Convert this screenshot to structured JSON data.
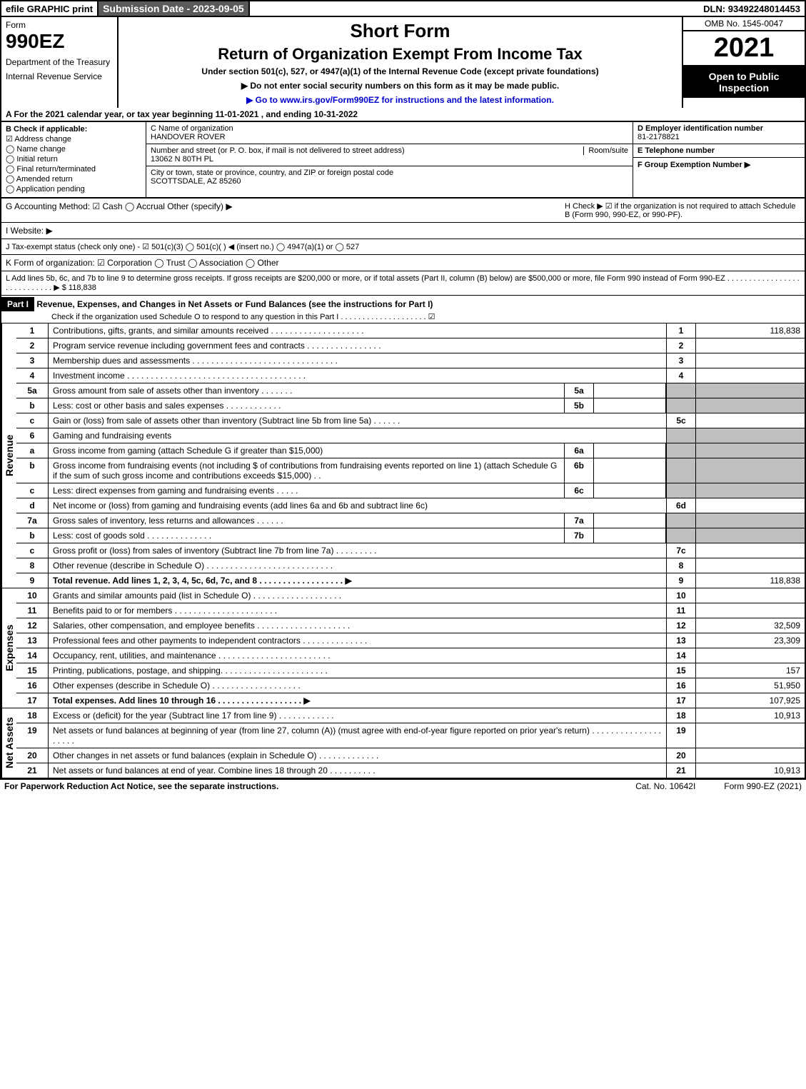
{
  "topbar": {
    "efile": "efile GRAPHIC print",
    "submission": "Submission Date - 2023-09-05",
    "dln": "DLN: 93492248014453"
  },
  "left": {
    "form_label": "Form",
    "form_no": "990EZ",
    "dept": "Department of the Treasury",
    "irs": "Internal Revenue Service"
  },
  "center": {
    "short": "Short Form",
    "return": "Return of Organization Exempt From Income Tax",
    "under": "Under section 501(c), 527, or 4947(a)(1) of the Internal Revenue Code (except private foundations)",
    "note": "▶ Do not enter social security numbers on this form as it may be made public.",
    "goto": "▶ Go to www.irs.gov/Form990EZ for instructions and the latest information."
  },
  "right": {
    "omb": "OMB No. 1545-0047",
    "year": "2021",
    "open": "Open to Public Inspection"
  },
  "rowA": "A  For the 2021 calendar year, or tax year beginning 11-01-2021 , and ending 10-31-2022",
  "B": {
    "head": "B  Check if applicable:",
    "addr": "Address change",
    "name": "Name change",
    "initial": "Initial return",
    "final": "Final return/terminated",
    "amended": "Amended return",
    "pending": "Application pending"
  },
  "C": {
    "name_lbl": "C Name of organization",
    "name": "HANDOVER ROVER",
    "street_lbl": "Number and street (or P. O. box, if mail is not delivered to street address)",
    "room_lbl": "Room/suite",
    "street": "13062 N 80TH PL",
    "city_lbl": "City or town, state or province, country, and ZIP or foreign postal code",
    "city": "SCOTTSDALE, AZ  85260"
  },
  "D": {
    "ein_lbl": "D Employer identification number",
    "ein": "81-2178821",
    "tel_lbl": "E Telephone number",
    "group_lbl": "F Group Exemption Number   ▶"
  },
  "G": "G Accounting Method:   ☑ Cash  ◯ Accrual  Other (specify) ▶",
  "H": "H   Check ▶  ☑  if the organization is not required to attach Schedule B (Form 990, 990-EZ, or 990-PF).",
  "I": "I Website: ▶",
  "J": "J Tax-exempt status (check only one) - ☑ 501(c)(3) ◯ 501(c)(  ) ◀ (insert no.) ◯ 4947(a)(1) or ◯ 527",
  "K": "K Form of organization:  ☑ Corporation  ◯ Trust  ◯ Association  ◯ Other",
  "L": "L Add lines 5b, 6c, and 7b to line 9 to determine gross receipts. If gross receipts are $200,000 or more, or if total assets (Part II, column (B) below) are $500,000 or more, file Form 990 instead of Form 990-EZ  .  .  .  .  .  .  .  .  .  .  .  .  .  .  .  .  .  .  .  .  .  .  .  .  .  .  .  . ▶ $ 118,838",
  "part1_head": "Part I",
  "part1_title": "Revenue, Expenses, and Changes in Net Assets or Fund Balances (see the instructions for Part I)",
  "part1_check": "Check if the organization used Schedule O to respond to any question in this Part I .  .  .  .  .  .  .  .  .  .  .  .  .  .  .  .  .  .  .  . ☑",
  "revenue_label": "Revenue",
  "expenses_label": "Expenses",
  "netassets_label": "Net Assets",
  "lines": {
    "1": {
      "no": "1",
      "desc": "Contributions, gifts, grants, and similar amounts received  .  .  .  .  .  .  .  .  .  .  .  .  .  .  .  .  .  .  .  .",
      "col": "1",
      "val": "118,838"
    },
    "2": {
      "no": "2",
      "desc": "Program service revenue including government fees and contracts  .  .  .  .  .  .  .  .  .  .  .  .  .  .  .  .",
      "col": "2",
      "val": ""
    },
    "3": {
      "no": "3",
      "desc": "Membership dues and assessments  .  .  .  .  .  .  .  .  .  .  .  .  .  .  .  .  .  .  .  .  .  .  .  .  .  .  .  .  .  .  .",
      "col": "3",
      "val": ""
    },
    "4": {
      "no": "4",
      "desc": "Investment income  .  .  .  .  .  .  .  .  .  .  .  .  .  .  .  .  .  .  .  .  .  .  .  .  .  .  .  .  .  .  .  .  .  .  .  .  .  .",
      "col": "4",
      "val": ""
    },
    "5a": {
      "no": "5a",
      "desc": "Gross amount from sale of assets other than inventory  .  .  .  .  .  .  .",
      "sub": "5a"
    },
    "5b": {
      "no": "b",
      "desc": "Less: cost or other basis and sales expenses  .  .  .  .  .  .  .  .  .  .  .  .",
      "sub": "5b"
    },
    "5c": {
      "no": "c",
      "desc": "Gain or (loss) from sale of assets other than inventory (Subtract line 5b from line 5a)  .  .  .  .  .  .",
      "col": "5c",
      "val": ""
    },
    "6": {
      "no": "6",
      "desc": "Gaming and fundraising events"
    },
    "6a": {
      "no": "a",
      "desc": "Gross income from gaming (attach Schedule G if greater than $15,000)",
      "sub": "6a"
    },
    "6b": {
      "no": "b",
      "desc": "Gross income from fundraising events (not including $                          of contributions from fundraising events reported on line 1) (attach Schedule G if the sum of such gross income and contributions exceeds $15,000)     .   .",
      "sub": "6b"
    },
    "6c": {
      "no": "c",
      "desc": "Less: direct expenses from gaming and fundraising events   .  .  .  .  .",
      "sub": "6c"
    },
    "6d": {
      "no": "d",
      "desc": "Net income or (loss) from gaming and fundraising events (add lines 6a and 6b and subtract line 6c)",
      "col": "6d",
      "val": ""
    },
    "7a": {
      "no": "7a",
      "desc": "Gross sales of inventory, less returns and allowances  .  .  .  .  .  .",
      "sub": "7a"
    },
    "7b": {
      "no": "b",
      "desc": "Less: cost of goods sold          .   .   .   .   .   .   .   .   .   .   .   .   .   .",
      "sub": "7b"
    },
    "7c": {
      "no": "c",
      "desc": "Gross profit or (loss) from sales of inventory (Subtract line 7b from line 7a)  .  .  .  .  .  .  .  .  .",
      "col": "7c",
      "val": ""
    },
    "8": {
      "no": "8",
      "desc": "Other revenue (describe in Schedule O)  .  .  .  .  .  .  .  .  .  .  .  .  .  .  .  .  .  .  .  .  .  .  .  .  .  .  .",
      "col": "8",
      "val": ""
    },
    "9": {
      "no": "9",
      "desc": "Total revenue. Add lines 1, 2, 3, 4, 5c, 6d, 7c, and 8   .  .  .  .  .  .  .  .  .  .  .  .  .  .  .  .  .  .  ▶",
      "col": "9",
      "val": "118,838"
    },
    "10": {
      "no": "10",
      "desc": "Grants and similar amounts paid (list in Schedule O)  .  .  .  .  .  .  .  .  .  .  .  .  .  .  .  .  .  .  .",
      "col": "10",
      "val": ""
    },
    "11": {
      "no": "11",
      "desc": "Benefits paid to or for members      .   .   .   .   .   .   .   .   .   .   .   .   .   .   .   .   .   .   .   .   .   .",
      "col": "11",
      "val": ""
    },
    "12": {
      "no": "12",
      "desc": "Salaries, other compensation, and employee benefits .  .  .  .  .  .  .  .  .  .  .  .  .  .  .  .  .  .  .  .",
      "col": "12",
      "val": "32,509"
    },
    "13": {
      "no": "13",
      "desc": "Professional fees and other payments to independent contractors  .  .  .  .  .  .  .  .  .  .  .  .  .  .",
      "col": "13",
      "val": "23,309"
    },
    "14": {
      "no": "14",
      "desc": "Occupancy, rent, utilities, and maintenance .  .  .  .  .  .  .  .  .  .  .  .  .  .  .  .  .  .  .  .  .  .  .  .",
      "col": "14",
      "val": ""
    },
    "15": {
      "no": "15",
      "desc": "Printing, publications, postage, and shipping.  .  .  .  .  .  .  .  .  .  .  .  .  .  .  .  .  .  .  .  .  .  .",
      "col": "15",
      "val": "157"
    },
    "16": {
      "no": "16",
      "desc": "Other expenses (describe in Schedule O)     .   .   .   .   .   .   .   .   .   .   .   .   .   .   .   .   .   .   .",
      "col": "16",
      "val": "51,950"
    },
    "17": {
      "no": "17",
      "desc": "Total expenses. Add lines 10 through 16     .   .   .   .   .   .   .   .   .   .   .   .   .   .   .   .   .   .  ▶",
      "col": "17",
      "val": "107,925"
    },
    "18": {
      "no": "18",
      "desc": "Excess or (deficit) for the year (Subtract line 17 from line 9)       .   .   .   .   .   .   .   .   .   .   .   .",
      "col": "18",
      "val": "10,913"
    },
    "19": {
      "no": "19",
      "desc": "Net assets or fund balances at beginning of year (from line 27, column (A)) (must agree with end-of-year figure reported on prior year's return) .  .  .  .  .  .  .  .  .  .  .  .  .  .  .  .  .  .  .  .",
      "col": "19",
      "val": ""
    },
    "20": {
      "no": "20",
      "desc": "Other changes in net assets or fund balances (explain in Schedule O) .  .  .  .  .  .  .  .  .  .  .  .  .",
      "col": "20",
      "val": ""
    },
    "21": {
      "no": "21",
      "desc": "Net assets or fund balances at end of year. Combine lines 18 through 20 .  .  .  .  .  .  .  .  .  .",
      "col": "21",
      "val": "10,913"
    }
  },
  "footer": {
    "paperwork": "For Paperwork Reduction Act Notice, see the separate instructions.",
    "cat": "Cat. No. 10642I",
    "form": "Form 990-EZ (2021)"
  }
}
